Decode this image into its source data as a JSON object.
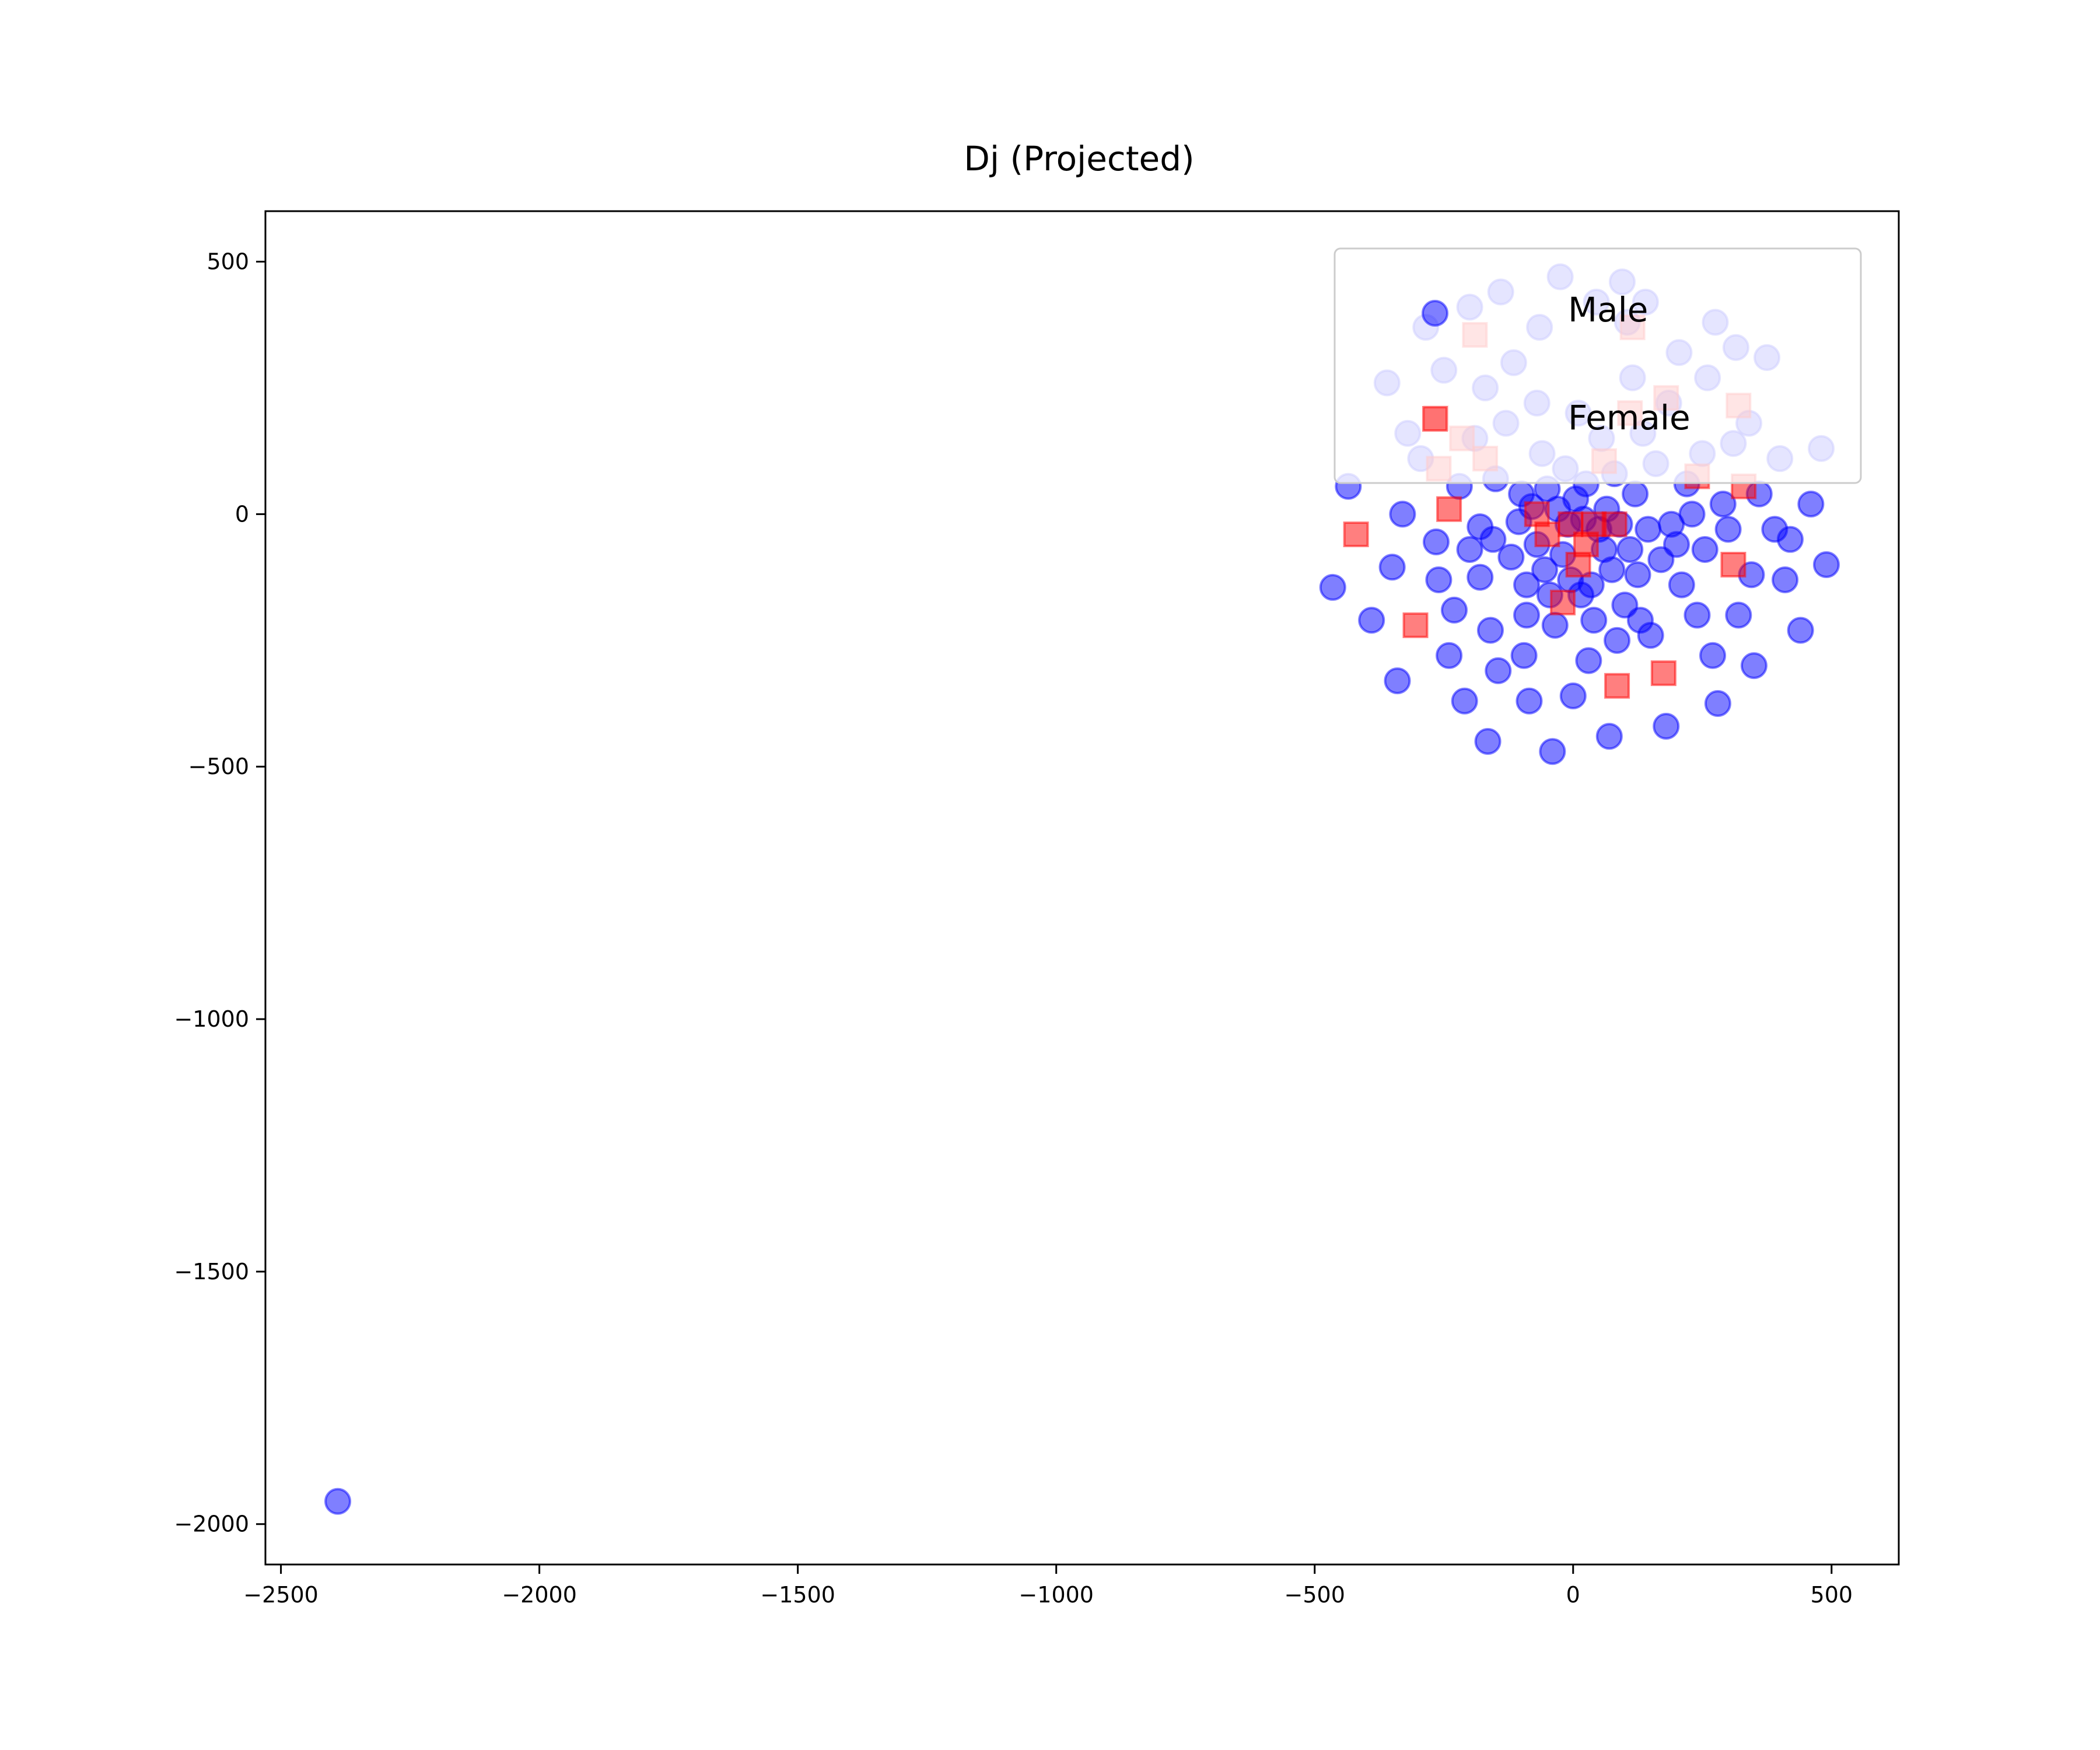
{
  "chart_data": {
    "type": "scatter",
    "title": "Dj (Projected)",
    "xlabel": "",
    "ylabel": "",
    "xlim": [
      -2530,
      630
    ],
    "ylim": [
      -2080,
      600
    ],
    "xticks": [
      -2500,
      -2000,
      -1500,
      -1000,
      -500,
      0,
      500
    ],
    "xtick_labels": [
      "−2500",
      "−2000",
      "−1500",
      "−1000",
      "−500",
      "0",
      "500"
    ],
    "yticks": [
      500,
      0,
      -500,
      -1000,
      -1500,
      -2000
    ],
    "ytick_labels": [
      "500",
      "0",
      "−500",
      "−1000",
      "−1500",
      "−2000"
    ],
    "grid": false,
    "legend_position": "top-right",
    "series": [
      {
        "name": "Male",
        "marker": "circle",
        "color": "#0000ff",
        "points": [
          [
            -2390,
            -1955
          ],
          [
            -465,
            -145
          ],
          [
            -435,
            55
          ],
          [
            -390,
            -210
          ],
          [
            -360,
            260
          ],
          [
            -350,
            -105
          ],
          [
            -340,
            -330
          ],
          [
            -330,
            0
          ],
          [
            -320,
            160
          ],
          [
            -295,
            110
          ],
          [
            -285,
            370
          ],
          [
            -265,
            -55
          ],
          [
            -260,
            -130
          ],
          [
            -250,
            285
          ],
          [
            -240,
            -280
          ],
          [
            -230,
            -190
          ],
          [
            -220,
            55
          ],
          [
            -210,
            -370
          ],
          [
            -200,
            410
          ],
          [
            -200,
            -70
          ],
          [
            -190,
            150
          ],
          [
            -180,
            -25
          ],
          [
            -180,
            -125
          ],
          [
            -170,
            250
          ],
          [
            -165,
            -450
          ],
          [
            -160,
            -230
          ],
          [
            -155,
            -50
          ],
          [
            -150,
            70
          ],
          [
            -145,
            -310
          ],
          [
            -140,
            440
          ],
          [
            -130,
            180
          ],
          [
            -120,
            -85
          ],
          [
            -115,
            300
          ],
          [
            -105,
            -15
          ],
          [
            -100,
            40
          ],
          [
            -95,
            -280
          ],
          [
            -90,
            -140
          ],
          [
            -90,
            -200
          ],
          [
            -85,
            -370
          ],
          [
            -80,
            15
          ],
          [
            -70,
            220
          ],
          [
            -70,
            -60
          ],
          [
            -65,
            370
          ],
          [
            -60,
            120
          ],
          [
            -55,
            -110
          ],
          [
            -50,
            50
          ],
          [
            -45,
            -160
          ],
          [
            -40,
            -470
          ],
          [
            -35,
            -220
          ],
          [
            -30,
            10
          ],
          [
            -25,
            470
          ],
          [
            -20,
            -80
          ],
          [
            -15,
            90
          ],
          [
            -10,
            -20
          ],
          [
            -5,
            -130
          ],
          [
            0,
            -360
          ],
          [
            5,
            30
          ],
          [
            10,
            200
          ],
          [
            15,
            -160
          ],
          [
            20,
            -10
          ],
          [
            25,
            60
          ],
          [
            30,
            -290
          ],
          [
            35,
            -140
          ],
          [
            40,
            -210
          ],
          [
            45,
            420
          ],
          [
            50,
            -30
          ],
          [
            55,
            150
          ],
          [
            60,
            -70
          ],
          [
            65,
            10
          ],
          [
            70,
            -440
          ],
          [
            75,
            -110
          ],
          [
            80,
            80
          ],
          [
            85,
            -250
          ],
          [
            90,
            -20
          ],
          [
            95,
            460
          ],
          [
            100,
            -180
          ],
          [
            105,
            380
          ],
          [
            110,
            -70
          ],
          [
            115,
            270
          ],
          [
            120,
            40
          ],
          [
            125,
            -120
          ],
          [
            130,
            -210
          ],
          [
            135,
            160
          ],
          [
            140,
            420
          ],
          [
            145,
            -30
          ],
          [
            150,
            -240
          ],
          [
            160,
            100
          ],
          [
            170,
            -90
          ],
          [
            180,
            -420
          ],
          [
            185,
            220
          ],
          [
            190,
            -20
          ],
          [
            200,
            -60
          ],
          [
            205,
            320
          ],
          [
            210,
            -140
          ],
          [
            220,
            60
          ],
          [
            230,
            0
          ],
          [
            240,
            -200
          ],
          [
            250,
            120
          ],
          [
            255,
            -70
          ],
          [
            260,
            270
          ],
          [
            270,
            -280
          ],
          [
            275,
            380
          ],
          [
            280,
            -375
          ],
          [
            290,
            20
          ],
          [
            300,
            -30
          ],
          [
            310,
            140
          ],
          [
            315,
            330
          ],
          [
            320,
            -200
          ],
          [
            340,
            180
          ],
          [
            345,
            -120
          ],
          [
            350,
            -300
          ],
          [
            360,
            40
          ],
          [
            375,
            310
          ],
          [
            390,
            -30
          ],
          [
            400,
            110
          ],
          [
            410,
            -130
          ],
          [
            420,
            -50
          ],
          [
            440,
            -230
          ],
          [
            460,
            20
          ],
          [
            480,
            130
          ],
          [
            490,
            -100
          ]
        ]
      },
      {
        "name": "Female",
        "marker": "square",
        "color": "#ff0000",
        "points": [
          [
            -420,
            -40
          ],
          [
            -305,
            -220
          ],
          [
            -265,
            190
          ],
          [
            -260,
            90
          ],
          [
            -240,
            10
          ],
          [
            -215,
            150
          ],
          [
            -190,
            355
          ],
          [
            -170,
            110
          ],
          [
            -70,
            0
          ],
          [
            -50,
            -40
          ],
          [
            -20,
            -175
          ],
          [
            -5,
            -20
          ],
          [
            10,
            -100
          ],
          [
            25,
            -60
          ],
          [
            40,
            -20
          ],
          [
            60,
            105
          ],
          [
            80,
            -20
          ],
          [
            85,
            -340
          ],
          [
            110,
            200
          ],
          [
            115,
            370
          ],
          [
            175,
            -315
          ],
          [
            180,
            230
          ],
          [
            240,
            75
          ],
          [
            310,
            -100
          ],
          [
            320,
            215
          ],
          [
            330,
            55
          ]
        ]
      }
    ]
  }
}
